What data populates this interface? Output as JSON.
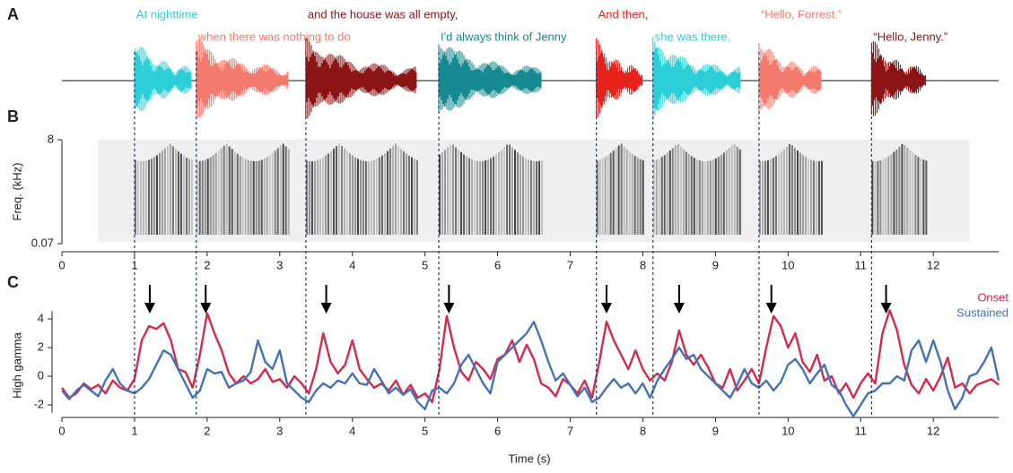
{
  "chart_data": [
    {
      "type": "waveform",
      "panel_label": "A",
      "categories": [
        "At nighttime",
        "when there was nothing to do",
        "and the house was all empty,",
        "I'd always think of Jenny",
        "And then,",
        "she was there.",
        "“Hello, Forrest.”",
        "“Hello, Jenny.”"
      ],
      "colors": [
        "#2ccfd8",
        "#f47a6e",
        "#8b1515",
        "#168a90",
        "#e8231e",
        "#2ccfd8",
        "#f47a6e",
        "#8b1515"
      ],
      "start": [
        1.0,
        1.85,
        3.36,
        5.19,
        7.36,
        8.14,
        9.6,
        11.15
      ],
      "end": [
        1.79,
        3.12,
        4.89,
        6.6,
        8.0,
        9.35,
        10.46,
        11.9
      ],
      "xlim": [
        0,
        12.9
      ]
    },
    {
      "type": "spectrogram",
      "panel_label": "B",
      "y_label": "Freq. (kHz)",
      "ylim": [
        0.07,
        8
      ],
      "yticks": [
        0.07,
        8
      ],
      "log_y": true,
      "xlim": [
        0,
        12.9
      ],
      "xticks": [
        0,
        1,
        2,
        3,
        4,
        5,
        6,
        7,
        8,
        9,
        10,
        11,
        12
      ]
    },
    {
      "type": "line",
      "panel_label": "C",
      "x_label": "Time (s)",
      "y_label": "High gamma",
      "xlim": [
        0,
        12.9
      ],
      "xticks": [
        0,
        1,
        2,
        3,
        4,
        5,
        6,
        7,
        8,
        9,
        10,
        11,
        12
      ],
      "ylim": [
        -2.8,
        4.8
      ],
      "yticks": [
        -2,
        0,
        2,
        4
      ],
      "legend": "upper right",
      "arrows": [
        1.21,
        1.98,
        3.64,
        5.33,
        7.5,
        8.5,
        9.77,
        11.35
      ],
      "x": [
        0,
        0.1,
        0.2,
        0.3,
        0.4,
        0.5,
        0.6,
        0.7,
        0.8,
        0.9,
        1,
        1.1,
        1.2,
        1.3,
        1.4,
        1.5,
        1.6,
        1.7,
        1.8,
        1.9,
        2,
        2.1,
        2.2,
        2.3,
        2.4,
        2.5,
        2.6,
        2.7,
        2.8,
        2.9,
        3,
        3.1,
        3.2,
        3.3,
        3.4,
        3.5,
        3.6,
        3.7,
        3.8,
        3.9,
        4,
        4.1,
        4.2,
        4.3,
        4.4,
        4.5,
        4.6,
        4.7,
        4.8,
        4.9,
        5,
        5.1,
        5.2,
        5.3,
        5.4,
        5.5,
        5.6,
        5.7,
        5.8,
        5.9,
        6,
        6.1,
        6.2,
        6.3,
        6.4,
        6.5,
        6.6,
        6.7,
        6.8,
        6.9,
        7,
        7.1,
        7.2,
        7.3,
        7.4,
        7.5,
        7.6,
        7.7,
        7.8,
        7.9,
        8,
        8.1,
        8.2,
        8.3,
        8.4,
        8.5,
        8.6,
        8.7,
        8.8,
        8.9,
        9,
        9.1,
        9.2,
        9.3,
        9.4,
        9.5,
        9.6,
        9.7,
        9.8,
        9.9,
        10,
        10.1,
        10.2,
        10.3,
        10.4,
        10.5,
        10.6,
        10.7,
        10.8,
        10.9,
        11,
        11.1,
        11.2,
        11.3,
        11.4,
        11.5,
        11.6,
        11.7,
        11.8,
        11.9,
        12,
        12.1,
        12.2,
        12.3,
        12.4,
        12.5,
        12.6,
        12.7,
        12.8,
        12.9
      ],
      "series": [
        {
          "name": "Onset",
          "color": "#d42a4b",
          "values": [
            -0.8,
            -1.5,
            -1.2,
            -0.5,
            -0.9,
            -0.6,
            -1.2,
            -0.3,
            -0.8,
            -1.0,
            -0.2,
            2.5,
            3.5,
            3.3,
            3.7,
            2.5,
            0.5,
            0.3,
            -0.8,
            1.5,
            4.4,
            3.0,
            1.8,
            0.2,
            -0.5,
            0.0,
            -0.5,
            -0.2,
            0.5,
            -0.4,
            -0.2,
            -0.8,
            0.0,
            -0.5,
            -1.2,
            0.5,
            3.0,
            1.0,
            0.2,
            0.8,
            2.5,
            0.5,
            -0.2,
            -0.8,
            -0.5,
            -1.0,
            -0.3,
            -1.3,
            -0.6,
            -1.5,
            -1.2,
            -1.8,
            0.5,
            4.2,
            2.0,
            0.3,
            -0.3,
            1.0,
            0.5,
            -0.2,
            1.2,
            1.5,
            2.5,
            1.0,
            2.2,
            1.2,
            -0.5,
            -0.8,
            -1.4,
            -0.2,
            -0.6,
            -1.2,
            -0.3,
            -1.5,
            1.0,
            3.8,
            2.5,
            1.5,
            0.5,
            1.8,
            0.5,
            -0.3,
            0.2,
            -0.3,
            1.0,
            3.2,
            1.5,
            0.8,
            1.5,
            0.6,
            -0.5,
            -0.8,
            0.5,
            -1.0,
            -0.3,
            0.5,
            -0.5,
            2.0,
            4.2,
            3.5,
            2.0,
            3.0,
            1.0,
            0.3,
            1.5,
            -0.3,
            0.0,
            -1.2,
            -0.5,
            -1.5,
            -0.5,
            0.2,
            -0.5,
            3.0,
            4.6,
            3.2,
            0.8,
            -0.6,
            -1.2,
            -0.2,
            -1.0,
            0.0,
            1.3,
            -0.8,
            -0.5,
            -1.2,
            -0.6,
            -0.4,
            -0.2,
            -0.6
          ]
        },
        {
          "name": "Sustained",
          "color": "#4472b8",
          "values": [
            -1.0,
            -1.6,
            -1.0,
            -0.6,
            -1.0,
            -1.4,
            -0.3,
            0.5,
            -0.5,
            -1.0,
            -1.2,
            -0.8,
            -0.2,
            0.8,
            1.8,
            1.5,
            0.5,
            -0.5,
            -1.5,
            -1.0,
            0.5,
            0.2,
            0.3,
            -0.8,
            -0.5,
            -0.3,
            0.3,
            2.5,
            1.0,
            0.5,
            1.8,
            -0.5,
            -1.0,
            -1.5,
            -1.8,
            -1.0,
            -0.5,
            -0.8,
            -0.3,
            -0.5,
            0.2,
            -0.5,
            -0.6,
            0.5,
            -0.3,
            -1.2,
            -0.8,
            -1.3,
            -0.9,
            -1.8,
            -2.3,
            -1.0,
            -0.8,
            -1.2,
            -0.5,
            0.8,
            1.5,
            0.5,
            -0.5,
            -1.2,
            1.0,
            1.5,
            2.0,
            2.5,
            3.0,
            3.8,
            2.5,
            1.0,
            -0.3,
            0.2,
            -0.6,
            -1.4,
            -0.8,
            -1.8,
            -1.5,
            -0.8,
            -0.2,
            -0.8,
            -0.5,
            -1.2,
            -0.5,
            -1.5,
            -0.3,
            0.5,
            1.2,
            2.0,
            1.2,
            1.5,
            0.5,
            0.0,
            -0.5,
            -1.0,
            -1.5,
            -0.6,
            0.5,
            -0.5,
            -0.8,
            -0.3,
            -1.0,
            -0.4,
            0.8,
            1.2,
            0.5,
            -0.5,
            0.2,
            0.8,
            -0.6,
            -1.0,
            -2.0,
            -2.8,
            -2.0,
            -1.2,
            -1.0,
            -0.5,
            -0.5,
            0.0,
            -0.3,
            1.8,
            2.5,
            1.0,
            2.5,
            1.0,
            -1.0,
            -2.3,
            -1.5,
            0.0,
            0.2,
            1.0,
            2.0,
            -0.3
          ]
        }
      ]
    }
  ]
}
